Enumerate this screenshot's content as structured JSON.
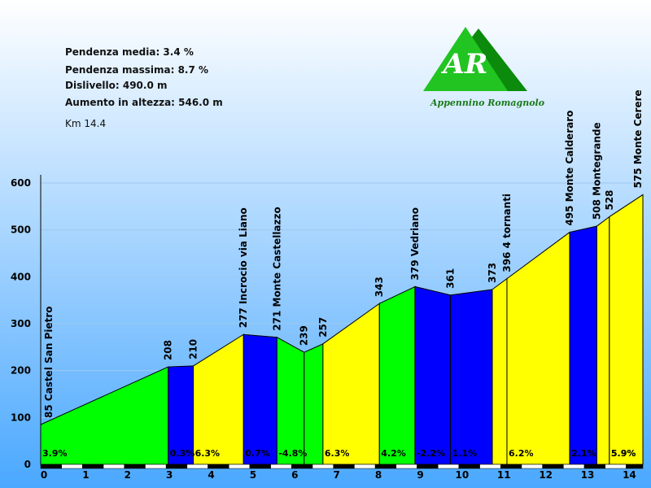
{
  "stats": [
    "Pendenza media: 3.4 %",
    "Pendenza massima: 8.7 %",
    "Dislivello: 490.0 m",
    "Aumento in altezza: 546.0 m",
    "Km 14.4"
  ],
  "logo": {
    "initials": "AR",
    "subtitle": "Appennino Romagnolo"
  },
  "colors": {
    "sky_top": "#ffffff",
    "sky_bottom": "#4aa8ff",
    "green": "#00ff00",
    "blue": "#0000ff",
    "yellow": "#ffff00"
  },
  "chart_data": {
    "type": "area",
    "xlabel": "",
    "ylabel": "",
    "xlim": [
      0,
      14.4
    ],
    "ylim": [
      0,
      600
    ],
    "x_ticks": [
      0,
      1,
      2,
      3,
      4,
      5,
      6,
      7,
      8,
      9,
      10,
      11,
      12,
      13,
      14
    ],
    "y_ticks": [
      0,
      100,
      200,
      300,
      400,
      500,
      600
    ],
    "points": [
      {
        "x": 0.0,
        "y": 85,
        "label": "85 Castel San Pietro"
      },
      {
        "x": 3.05,
        "y": 208,
        "label": "208"
      },
      {
        "x": 3.65,
        "y": 210,
        "label": "210"
      },
      {
        "x": 4.85,
        "y": 277,
        "label": "277 Incrocio via Liano"
      },
      {
        "x": 5.65,
        "y": 271,
        "label": "271 Monte Castellazzo"
      },
      {
        "x": 6.3,
        "y": 239,
        "label": "239"
      },
      {
        "x": 6.75,
        "y": 257,
        "label": "257"
      },
      {
        "x": 8.1,
        "y": 343,
        "label": "343"
      },
      {
        "x": 8.95,
        "y": 379,
        "label": "379 Vedriano"
      },
      {
        "x": 9.8,
        "y": 361,
        "label": "361"
      },
      {
        "x": 10.8,
        "y": 373,
        "label": "373"
      },
      {
        "x": 11.15,
        "y": 396,
        "label": "396 4 tornanti"
      },
      {
        "x": 12.65,
        "y": 495,
        "label": "495 Monte Calderaro"
      },
      {
        "x": 13.3,
        "y": 508,
        "label": "508 Montegrande"
      },
      {
        "x": 13.6,
        "y": 528,
        "label": "528"
      },
      {
        "x": 14.4,
        "y": 575,
        "label": "575 Monte Cerere"
      }
    ],
    "segments": [
      {
        "from": 0,
        "to": 1,
        "grade": "3.9%",
        "color": "green"
      },
      {
        "from": 1,
        "to": 2,
        "grade": "0.3%",
        "color": "blue"
      },
      {
        "from": 2,
        "to": 3,
        "grade": "6.3%",
        "color": "yellow"
      },
      {
        "from": 3,
        "to": 4,
        "grade": "0.7%",
        "color": "blue"
      },
      {
        "from": 4,
        "to": 5,
        "grade": "-4.8%",
        "color": "green"
      },
      {
        "from": 5,
        "to": 6,
        "grade": "",
        "color": "green"
      },
      {
        "from": 6,
        "to": 7,
        "grade": "6.3%",
        "color": "yellow"
      },
      {
        "from": 7,
        "to": 8,
        "grade": "4.2%",
        "color": "green"
      },
      {
        "from": 8,
        "to": 9,
        "grade": "-2.2%",
        "color": "blue"
      },
      {
        "from": 9,
        "to": 10,
        "grade": "1.1%",
        "color": "blue"
      },
      {
        "from": 10,
        "to": 11,
        "grade": "",
        "color": "yellow"
      },
      {
        "from": 11,
        "to": 12,
        "grade": "6.2%",
        "color": "yellow"
      },
      {
        "from": 12,
        "to": 13,
        "grade": "2.1%",
        "color": "blue"
      },
      {
        "from": 13,
        "to": 14,
        "grade": "",
        "color": "yellow"
      },
      {
        "from": 14,
        "to": 15,
        "grade": "5.9%",
        "color": "yellow"
      }
    ]
  }
}
